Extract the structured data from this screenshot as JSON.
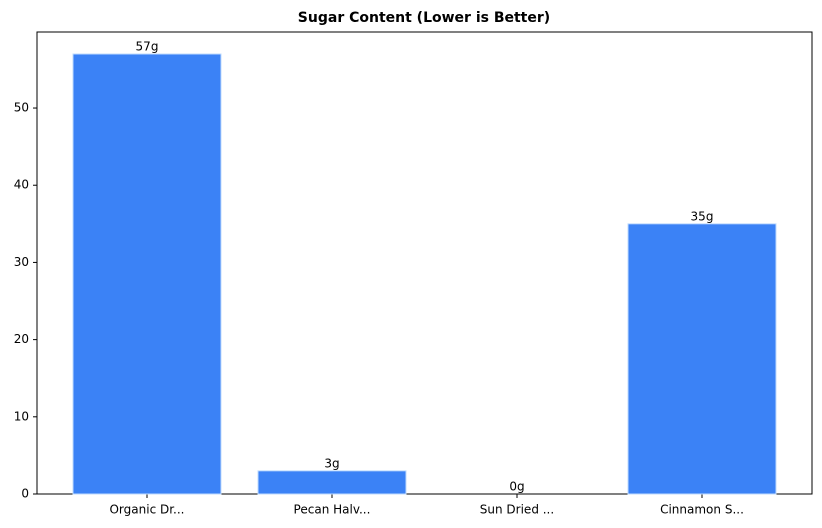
{
  "chart_data": {
    "type": "bar",
    "title": "Sugar Content (Lower is Better)",
    "categories": [
      "Organic Dr...",
      "Pecan Halv...",
      "Sun Dried ...",
      "Cinnamon S..."
    ],
    "values": [
      57,
      3,
      0,
      35
    ],
    "value_labels": [
      "57g",
      "3g",
      "0g",
      "35g"
    ],
    "color": "#3b82f6",
    "ylim": [
      0,
      59.85
    ],
    "yticks": [
      0,
      10,
      20,
      30,
      40,
      50
    ],
    "grid": false
  }
}
